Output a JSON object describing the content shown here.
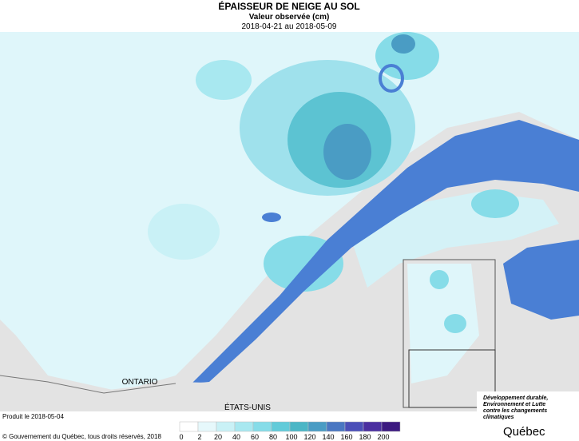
{
  "header": {
    "title": "ÉPAISSEUR DE NEIGE AU SOL",
    "subtitle": "Valeur observée (cm)",
    "period": "2018-04-21 au 2018-05-09"
  },
  "map": {
    "labels": [
      "ONTARIO",
      "ÉTATS-UNIS"
    ]
  },
  "footer": {
    "produced": "Produit le 2018-05-04",
    "copyright": "© Gouvernement du Québec, tous droits réservés, 2018"
  },
  "logo": {
    "lines": [
      "Développement durable,",
      "Environnement et Lutte",
      "contre les changements",
      "climatiques"
    ],
    "name": "Québec"
  },
  "legend": {
    "ticks": [
      0,
      2,
      20,
      40,
      60,
      80,
      100,
      120,
      140,
      160,
      180,
      200
    ],
    "colors": [
      "#ffffff",
      "#e6f8fb",
      "#c9f1f6",
      "#a8e8f0",
      "#86dce8",
      "#62cbd9",
      "#4bb6c6",
      "#4a9cc4",
      "#4a77c2",
      "#4b4fb8",
      "#4b2fa0",
      "#3c1a80"
    ]
  }
}
